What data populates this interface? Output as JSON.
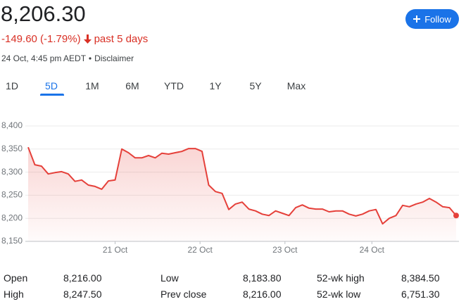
{
  "header": {
    "price": "8,206.30",
    "change": "-149.60 (-1.79%)",
    "period": "past 5 days",
    "timestamp": "24 Oct, 4:45 pm AEDT",
    "disclaimer": "Disclaimer",
    "follow": "Follow"
  },
  "tabs": {
    "items": [
      "1D",
      "5D",
      "1M",
      "6M",
      "YTD",
      "1Y",
      "5Y",
      "Max"
    ],
    "selected": "5D"
  },
  "chart_data": {
    "type": "line",
    "x": [
      0,
      1,
      2,
      3,
      4,
      5,
      6,
      7,
      8,
      9,
      10,
      11,
      12,
      13,
      14,
      15,
      16,
      17,
      18,
      19,
      20,
      21,
      22,
      23,
      24,
      25,
      26,
      27,
      28,
      29,
      30,
      31,
      32,
      33,
      34,
      35,
      36,
      37,
      38,
      39,
      40,
      41,
      42,
      43,
      44,
      45,
      46,
      47,
      48,
      49,
      50,
      51,
      52,
      53,
      54,
      55,
      56,
      57,
      58,
      59,
      60,
      61,
      62,
      63,
      64
    ],
    "series": [
      {
        "color": "#e5403a",
        "values": [
          8354,
          8316,
          8313,
          8296,
          8299,
          8301,
          8296,
          8280,
          8283,
          8272,
          8269,
          8263,
          8281,
          8283,
          8350,
          8342,
          8331,
          8331,
          8336,
          8331,
          8341,
          8339,
          8342,
          8345,
          8351,
          8351,
          8345,
          8272,
          8258,
          8254,
          8219,
          8231,
          8235,
          8220,
          8216,
          8209,
          8206,
          8216,
          8211,
          8206,
          8223,
          8229,
          8222,
          8220,
          8220,
          8214,
          8216,
          8216,
          8209,
          8205,
          8209,
          8216,
          8219,
          8188,
          8200,
          8206,
          8228,
          8225,
          8231,
          8235,
          8243,
          8235,
          8225,
          8223,
          8206
        ]
      }
    ],
    "xlim": [
      0,
      64
    ],
    "xticks": [
      {
        "value": 13,
        "label": "21 Oct"
      },
      {
        "value": 25.7,
        "label": "22 Oct"
      },
      {
        "value": 38.4,
        "label": "23 Oct"
      },
      {
        "value": 51.4,
        "label": "24 Oct"
      }
    ],
    "ylim": [
      8150,
      8400
    ],
    "yticks": [
      {
        "value": 8150,
        "label": "8,150"
      },
      {
        "value": 8200,
        "label": "8,200"
      },
      {
        "value": 8250,
        "label": "8,250"
      },
      {
        "value": 8300,
        "label": "8,300"
      },
      {
        "value": 8350,
        "label": "8,350"
      },
      {
        "value": 8400,
        "label": "8,400"
      }
    ],
    "grid": true
  },
  "stats": [
    {
      "label": "Open",
      "value": "8,216.00"
    },
    {
      "label": "High",
      "value": "8,247.50"
    },
    {
      "label": "Low",
      "value": "8,183.80"
    },
    {
      "label": "Prev close",
      "value": "8,216.00"
    },
    {
      "label": "52-wk high",
      "value": "8,384.50"
    },
    {
      "label": "52-wk low",
      "value": "6,751.30"
    }
  ]
}
